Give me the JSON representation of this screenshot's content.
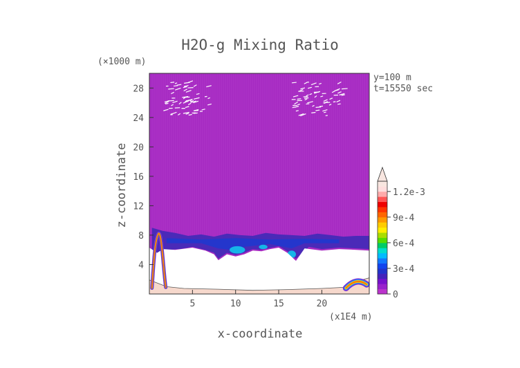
{
  "chart_data": {
    "type": "heatmap",
    "title": "H2O-g Mixing Ratio",
    "xlabel": "x-coordinate",
    "ylabel": "z-coordinate",
    "x_unit": "(x1E4 m)",
    "y_unit": "(×1000 m)",
    "xlim": [
      0,
      25.5
    ],
    "ylim": [
      0,
      30
    ],
    "xticks": [
      5,
      10,
      15,
      20
    ],
    "yticks": [
      4,
      8,
      12,
      16,
      20,
      24,
      28
    ],
    "info": [
      "y=100 m",
      "t=15550 sec"
    ],
    "colorbar": {
      "min": 0,
      "max": 0.00132,
      "tick_labels": [
        "0",
        "3e-4",
        "6e-4",
        "9e-4",
        "1.2e-3"
      ],
      "tick_values": [
        0,
        0.0003,
        0.0006,
        0.0009,
        0.0012
      ],
      "colors": [
        "#bb33cc",
        "#9922cc",
        "#7711cc",
        "#4422bb",
        "#2233cc",
        "#1144ee",
        "#1177ff",
        "#00bbff",
        "#00ddcc",
        "#00cc66",
        "#55dd00",
        "#aadd00",
        "#ffee00",
        "#ffcc00",
        "#ff9900",
        "#ff6600",
        "#ff3300",
        "#ee0000",
        "#ff5555",
        "#ffaaaa",
        "#ffdddd",
        "#f8e6e0"
      ]
    },
    "grid": false
  }
}
